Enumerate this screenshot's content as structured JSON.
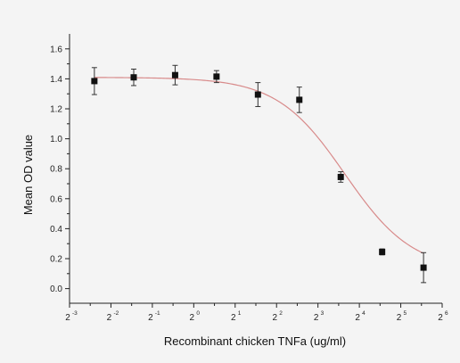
{
  "chart_data": {
    "type": "scatter",
    "title": "",
    "xlabel": "Recombinant chicken TNFa (ug/ml)",
    "ylabel": "Mean OD value",
    "x_scale": "log2",
    "xlim": [
      -3,
      6
    ],
    "ylim": [
      -0.05,
      1.7
    ],
    "x_ticks": [
      {
        "base": "2",
        "exp": "-3",
        "value": -3
      },
      {
        "base": "2",
        "exp": "-2",
        "value": -2
      },
      {
        "base": "2",
        "exp": "-1",
        "value": -1
      },
      {
        "base": "2",
        "exp": "0",
        "value": 0
      },
      {
        "base": "2",
        "exp": "1",
        "value": 1
      },
      {
        "base": "2",
        "exp": "2",
        "value": 2
      },
      {
        "base": "2",
        "exp": "3",
        "value": 3
      },
      {
        "base": "2",
        "exp": "4",
        "value": 4
      },
      {
        "base": "2",
        "exp": "5",
        "value": 5
      },
      {
        "base": "2",
        "exp": "6",
        "value": 6
      }
    ],
    "y_ticks": [
      "0.0",
      "0.2",
      "0.4",
      "0.6",
      "0.8",
      "1.0",
      "1.2",
      "1.4",
      "1.6"
    ],
    "y_tick_values": [
      0.0,
      0.2,
      0.4,
      0.6,
      0.8,
      1.0,
      1.2,
      1.4,
      1.6
    ],
    "series": [
      {
        "marker": "square",
        "color": "#111111",
        "points": [
          {
            "x_exp": -2.4,
            "y": 1.385,
            "err": 0.09
          },
          {
            "x_exp": -1.45,
            "y": 1.41,
            "err": 0.055
          },
          {
            "x_exp": -0.45,
            "y": 1.425,
            "err": 0.065
          },
          {
            "x_exp": 0.55,
            "y": 1.415,
            "err": 0.04
          },
          {
            "x_exp": 1.55,
            "y": 1.295,
            "err": 0.08
          },
          {
            "x_exp": 2.55,
            "y": 1.26,
            "err": 0.085
          },
          {
            "x_exp": 3.55,
            "y": 0.745,
            "err": 0.035
          },
          {
            "x_exp": 4.55,
            "y": 0.245,
            "err": 0.02
          },
          {
            "x_exp": 5.55,
            "y": 0.14,
            "err": 0.1
          }
        ]
      }
    ],
    "fit_curve": {
      "color": "#d88a8a",
      "top": 1.41,
      "bottom": 0.12,
      "x50_exp": 3.65,
      "slope": 1.1
    },
    "grid": false,
    "legend": "none"
  }
}
